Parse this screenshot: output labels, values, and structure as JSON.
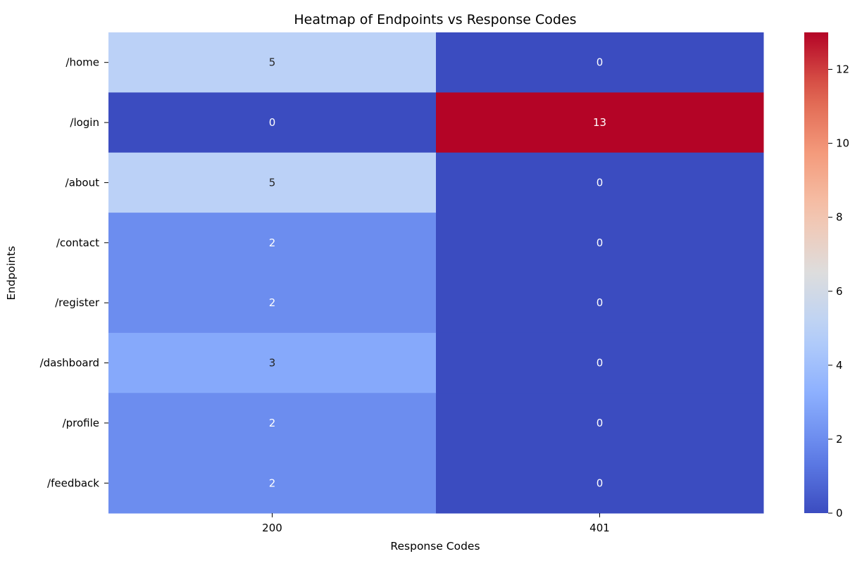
{
  "chart_data": {
    "type": "heatmap",
    "title": "Heatmap of Endpoints vs Response Codes",
    "xlabel": "Response Codes",
    "ylabel": "Endpoints",
    "x_categories": [
      "200",
      "401"
    ],
    "y_categories": [
      "/home",
      "/login",
      "/about",
      "/contact",
      "/register",
      "/dashboard",
      "/profile",
      "/feedback"
    ],
    "values": [
      [
        5,
        0
      ],
      [
        0,
        13
      ],
      [
        5,
        0
      ],
      [
        2,
        0
      ],
      [
        2,
        0
      ],
      [
        3,
        0
      ],
      [
        2,
        0
      ],
      [
        2,
        0
      ]
    ],
    "colormap": "coolwarm",
    "colorbar": {
      "range": [
        0,
        13
      ],
      "ticks": [
        0,
        2,
        4,
        6,
        8,
        10,
        12
      ]
    },
    "annotate": true
  }
}
